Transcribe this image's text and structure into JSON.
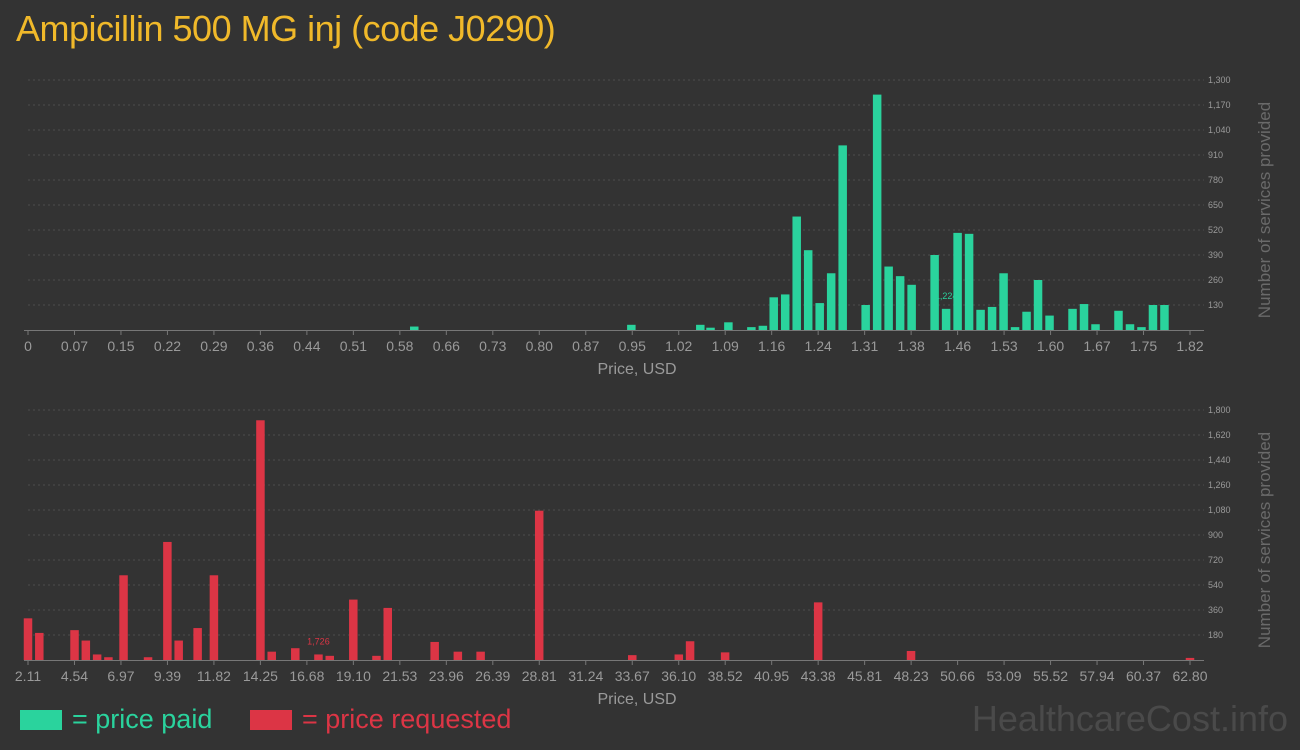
{
  "page": {
    "title": "Ampicillin 500 MG inj (code J0290)",
    "watermark": "HealthcareCost.info"
  },
  "legend": {
    "paid_label": "= price paid",
    "requested_label": "= price requested",
    "paid_color": "#2ad39d",
    "requested_color": "#dc3545"
  },
  "chart_data": [
    {
      "type": "bar",
      "xlabel": "Price, USD",
      "ylabel": "Number of services provided",
      "color": "#2ad39d",
      "xlim": [
        0,
        1.82
      ],
      "ylim": [
        0,
        1300
      ],
      "x_ticks": [
        "0",
        "0.07",
        "0.15",
        "0.22",
        "0.29",
        "0.36",
        "0.44",
        "0.51",
        "0.58",
        "0.66",
        "0.73",
        "0.80",
        "0.87",
        "0.95",
        "1.02",
        "1.09",
        "1.16",
        "1.24",
        "1.31",
        "1.38",
        "1.46",
        "1.53",
        "1.60",
        "1.67",
        "1.75",
        "1.82"
      ],
      "y_ticks": [
        "130",
        "260",
        "390",
        "520",
        "650",
        "780",
        "910",
        "1,040",
        "1,170",
        "1,300"
      ],
      "y_tick_values": [
        130,
        260,
        390,
        520,
        650,
        780,
        910,
        1040,
        1170,
        1300
      ],
      "peak_label": "1,224",
      "peak_index": 20,
      "x": [
        0.605,
        0.945,
        1.053,
        1.069,
        1.097,
        1.133,
        1.151,
        1.168,
        1.186,
        1.204,
        1.222,
        1.24,
        1.258,
        1.276,
        1.312,
        1.33,
        1.348,
        1.366,
        1.384,
        1.42,
        1.438,
        1.456,
        1.474,
        1.492,
        1.51,
        1.528,
        1.546,
        1.564,
        1.582,
        1.6,
        1.636,
        1.654,
        1.672,
        1.708,
        1.726,
        1.744,
        1.762,
        1.78
      ],
      "values": [
        18,
        27,
        27,
        12,
        40,
        15,
        22,
        170,
        185,
        590,
        415,
        140,
        295,
        960,
        130,
        1224,
        330,
        280,
        235,
        390,
        110,
        505,
        500,
        105,
        120,
        295,
        15,
        95,
        260,
        75,
        110,
        135,
        30,
        100,
        30,
        15,
        130,
        130
      ]
    },
    {
      "type": "bar",
      "xlabel": "Price, USD",
      "ylabel": "Number of services provided",
      "color": "#dc3545",
      "xlim": [
        2.11,
        62.8
      ],
      "ylim": [
        0,
        1800
      ],
      "x_ticks": [
        "2.11",
        "4.54",
        "6.97",
        "9.39",
        "11.82",
        "14.25",
        "16.68",
        "19.10",
        "21.53",
        "23.96",
        "26.39",
        "28.81",
        "31.24",
        "33.67",
        "36.10",
        "38.52",
        "40.95",
        "43.38",
        "45.81",
        "48.23",
        "50.66",
        "53.09",
        "55.52",
        "57.94",
        "60.37",
        "62.80"
      ],
      "y_ticks": [
        "180",
        "360",
        "540",
        "720",
        "900",
        "1,080",
        "1,260",
        "1,440",
        "1,620",
        "1,800"
      ],
      "y_tick_values": [
        180,
        360,
        540,
        720,
        900,
        1080,
        1260,
        1440,
        1620,
        1800
      ],
      "peak_label": "1,726",
      "peak_index": 15,
      "x": [
        2.11,
        2.7,
        4.54,
        5.13,
        5.72,
        6.31,
        7.1,
        8.38,
        9.39,
        9.98,
        10.97,
        11.82,
        14.25,
        14.84,
        16.07,
        17.28,
        17.87,
        19.1,
        20.31,
        20.9,
        23.35,
        24.56,
        25.75,
        28.81,
        33.67,
        36.1,
        36.69,
        38.52,
        43.38,
        48.23,
        62.8
      ],
      "values": [
        300,
        195,
        215,
        140,
        40,
        20,
        610,
        20,
        850,
        140,
        230,
        610,
        1726,
        60,
        85,
        40,
        30,
        435,
        30,
        375,
        130,
        60,
        60,
        1075,
        35,
        40,
        135,
        55,
        415,
        65,
        15
      ]
    }
  ]
}
